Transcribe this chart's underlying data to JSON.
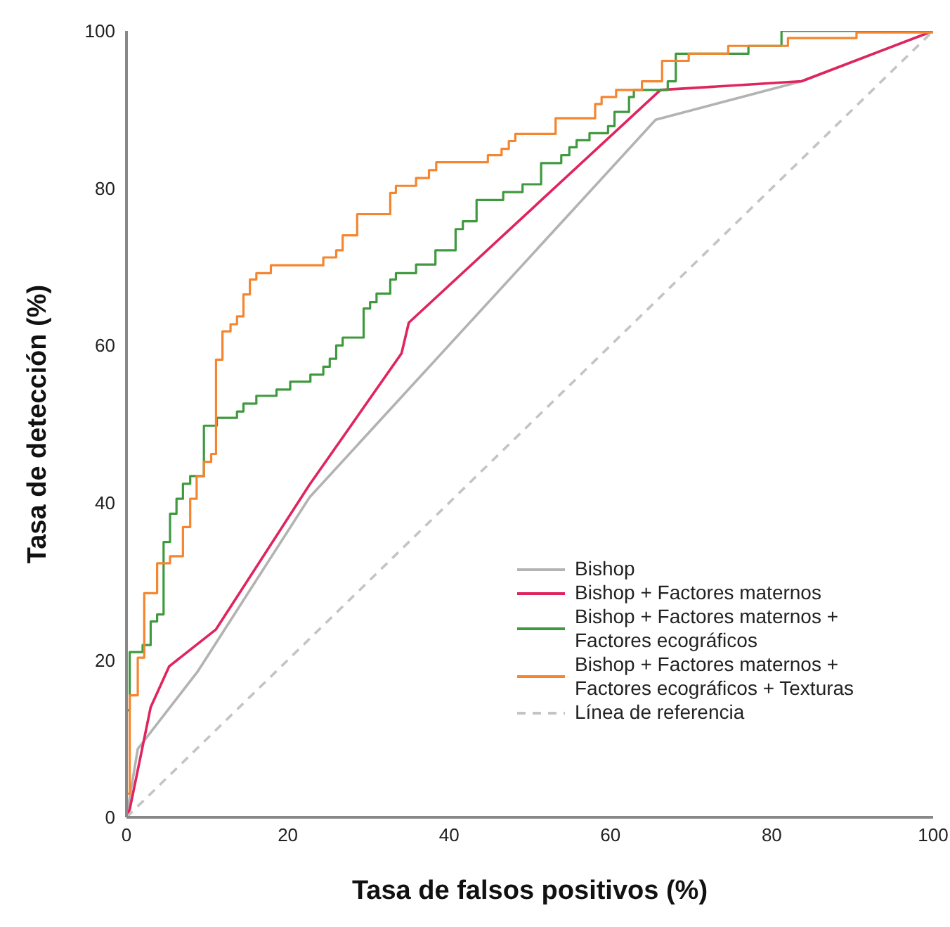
{
  "chart_data": {
    "type": "line",
    "xlabel": "Tasa de falsos positivos (%)",
    "ylabel": "Tasa de detección (%)",
    "xlim": [
      0,
      100
    ],
    "ylim": [
      0,
      100
    ],
    "xticks": [
      0,
      20,
      40,
      60,
      80,
      100
    ],
    "yticks": [
      0,
      20,
      40,
      60,
      80,
      100
    ],
    "grid": false,
    "legend": "bottom right",
    "series": [
      {
        "name": "Bishop",
        "color": "#b3b3b3",
        "x": [
          0,
          1.4,
          8.8,
          22.7,
          65.6,
          83.7,
          100
        ],
        "values": [
          0,
          8.7,
          18.5,
          40.7,
          88.7,
          93.6,
          100
        ]
      },
      {
        "name": "Bishop + Factores maternos",
        "color": "#e0245e",
        "x": [
          0,
          0.4,
          3,
          5.3,
          11.1,
          22.7,
          34.1,
          35,
          66.2,
          83.7,
          100
        ],
        "values": [
          0,
          1,
          14,
          19.2,
          23.9,
          42.3,
          59,
          62.9,
          92.5,
          93.6,
          100
        ]
      },
      {
        "name": "Bishop + Factores maternos + Factores ecográficos",
        "type": "step",
        "color": "#3f9a3f",
        "x": [
          0,
          0.4,
          2,
          3,
          3.8,
          4.6,
          5.4,
          6.2,
          7,
          7.9,
          9.6,
          11.2,
          13.7,
          14.5,
          16.1,
          18.6,
          20.3,
          22.8,
          24.4,
          25.2,
          26,
          26.8,
          29.4,
          30.2,
          31,
          32.7,
          33.4,
          35.9,
          38.3,
          40.8,
          41.7,
          43.4,
          46.7,
          49.1,
          51.4,
          53.9,
          54.9,
          55.8,
          57.4,
          59.7,
          60.5,
          62.3,
          62.9,
          67.1,
          68.1,
          77.1,
          81.2,
          100
        ],
        "values": [
          13.6,
          21,
          21.9,
          24.9,
          25.8,
          35,
          38.6,
          40.5,
          42.4,
          43.4,
          49.8,
          50.8,
          51.6,
          52.6,
          53.6,
          54.4,
          55.4,
          56.3,
          57.3,
          58.3,
          60,
          61,
          64.7,
          65.5,
          66.6,
          68.4,
          69.2,
          70.3,
          72.1,
          74.8,
          75.8,
          78.5,
          79.5,
          80.5,
          83.2,
          84.2,
          85.2,
          86.1,
          87,
          87.9,
          89.7,
          91.6,
          92.5,
          93.6,
          97.1,
          98.1,
          100,
          100
        ]
      },
      {
        "name": "Bishop + Factores maternos + Factores ecográficos + Texturas",
        "type": "step",
        "color": "#f5852f",
        "x": [
          0,
          0.4,
          1.4,
          2.2,
          3.8,
          5.4,
          7,
          7.9,
          8.7,
          9.6,
          10.5,
          11.1,
          11.9,
          12.9,
          13.7,
          14.5,
          15.3,
          16.1,
          17.9,
          24.4,
          26,
          26.8,
          28.6,
          32.7,
          33.4,
          35.9,
          37.5,
          38.4,
          44.8,
          46.5,
          47.4,
          48.2,
          53.2,
          58.1,
          58.9,
          60.7,
          63.9,
          66.4,
          69.7,
          74.6,
          82,
          90.5,
          100
        ],
        "values": [
          3,
          15.5,
          20.3,
          28.5,
          32.3,
          33.2,
          36.9,
          40.5,
          43.4,
          45.2,
          46.2,
          58.2,
          61.8,
          62.7,
          63.7,
          66.5,
          68.4,
          69.2,
          70.2,
          71.2,
          72.1,
          74,
          76.7,
          79.4,
          80.3,
          81.3,
          82.3,
          83.3,
          84.2,
          85,
          86,
          86.9,
          88.9,
          90.7,
          91.6,
          92.5,
          93.6,
          96.2,
          97.1,
          98.1,
          99.1,
          99.8,
          100
        ]
      },
      {
        "name": "Línea de referencia",
        "color": "#c4c4c4",
        "line_style": "dashed",
        "x": [
          0,
          100
        ],
        "values": [
          0,
          100
        ]
      }
    ]
  }
}
